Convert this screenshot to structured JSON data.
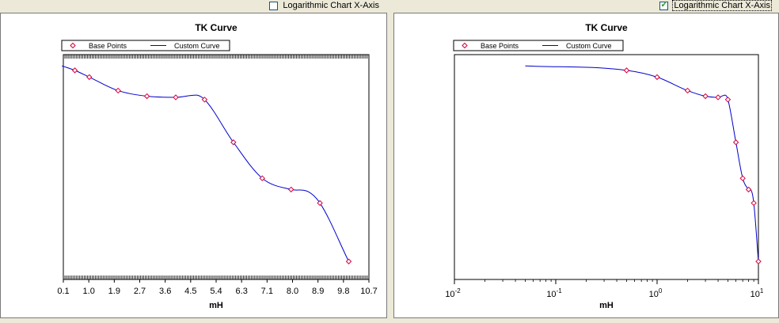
{
  "panels": [
    {
      "checkbox_label": "Logarithmic Chart X-Axis",
      "checked": false
    },
    {
      "checkbox_label": "Logarithmic Chart X-Axis",
      "checked": true
    }
  ],
  "colors": {
    "base_points": "#d9003a",
    "custom_curve": "#0000cc",
    "check": "#21a121"
  },
  "chart_data": [
    {
      "type": "line",
      "title": "TK Curve",
      "xlabel": "mH",
      "ylabel": "",
      "x_scale": "linear",
      "xlim": [
        0.1,
        10.7
      ],
      "ylim": [
        0,
        1
      ],
      "x_ticks": [
        "0.1",
        "1.0",
        "1.9",
        "2.7",
        "3.6",
        "4.5",
        "5.4",
        "6.3",
        "7.1",
        "8.0",
        "8.9",
        "9.8",
        "10.7"
      ],
      "legend": [
        "Base Points",
        "Custom Curve"
      ],
      "legend_position": "top",
      "series": [
        {
          "name": "Base Points",
          "kind": "markers",
          "x": [
            0.5,
            1.0,
            2.0,
            3.0,
            4.0,
            5.0,
            6.0,
            7.0,
            8.0,
            9.0,
            10.0
          ],
          "y": [
            0.93,
            0.9,
            0.84,
            0.815,
            0.81,
            0.8,
            0.61,
            0.45,
            0.4,
            0.34,
            0.08
          ]
        },
        {
          "name": "Custom Curve",
          "kind": "line",
          "x": [
            0.05,
            0.5,
            1.0,
            2.0,
            3.0,
            4.0,
            4.7,
            5.0,
            6.0,
            7.0,
            8.0,
            8.6,
            9.0,
            10.0
          ],
          "y": [
            0.95,
            0.93,
            0.9,
            0.84,
            0.815,
            0.81,
            0.82,
            0.8,
            0.61,
            0.45,
            0.4,
            0.39,
            0.34,
            0.08
          ]
        }
      ]
    },
    {
      "type": "line",
      "title": "TK Curve",
      "xlabel": "mH",
      "ylabel": "",
      "x_scale": "log",
      "xlim": [
        0.01,
        10
      ],
      "ylim": [
        0,
        1
      ],
      "x_ticks": [
        {
          "base": "10",
          "exp": "-2"
        },
        {
          "base": "10",
          "exp": "-1"
        },
        {
          "base": "10",
          "exp": "0"
        },
        {
          "base": "10",
          "exp": "1"
        }
      ],
      "legend": [
        "Base Points",
        "Custom Curve"
      ],
      "legend_position": "top",
      "series": [
        {
          "name": "Base Points",
          "kind": "markers",
          "x": [
            0.5,
            1.0,
            2.0,
            3.0,
            4.0,
            5.0,
            6.0,
            7.0,
            8.0,
            9.0,
            10.0
          ],
          "y": [
            0.93,
            0.9,
            0.84,
            0.815,
            0.81,
            0.8,
            0.61,
            0.45,
            0.4,
            0.34,
            0.08
          ]
        },
        {
          "name": "Custom Curve",
          "kind": "line",
          "x": [
            0.05,
            0.5,
            1.0,
            2.0,
            3.0,
            4.0,
            4.7,
            5.0,
            6.0,
            7.0,
            8.0,
            8.6,
            9.0,
            10.0
          ],
          "y": [
            0.95,
            0.93,
            0.9,
            0.84,
            0.815,
            0.81,
            0.82,
            0.8,
            0.61,
            0.45,
            0.4,
            0.39,
            0.34,
            0.08
          ]
        }
      ]
    }
  ]
}
